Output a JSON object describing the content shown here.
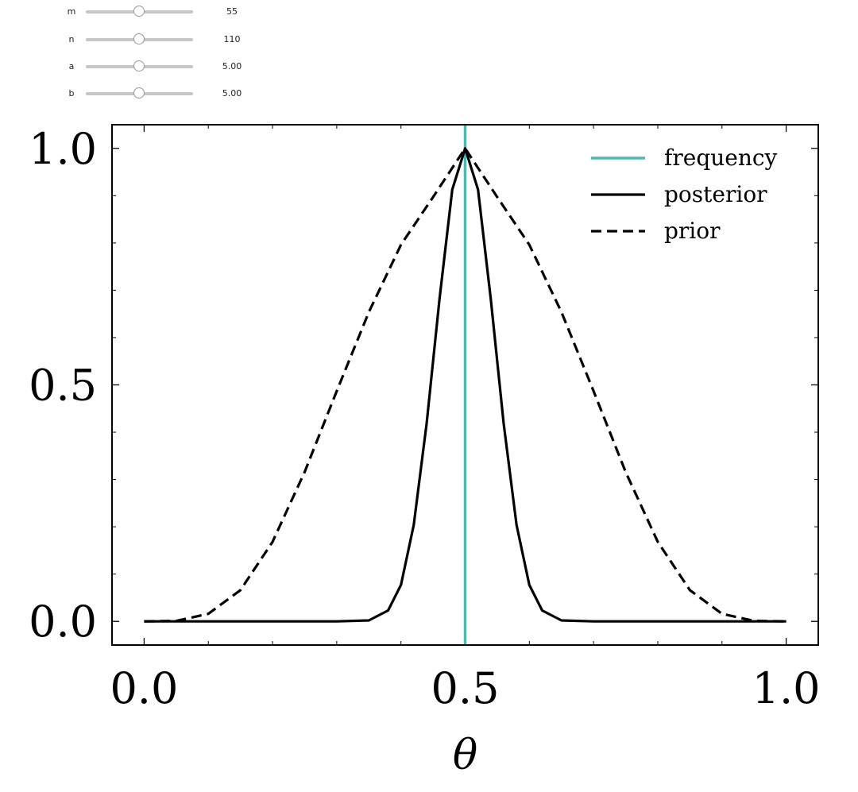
{
  "controls": {
    "sliders": [
      {
        "label": "m",
        "value_text": "55",
        "fraction": 0.5
      },
      {
        "label": "n",
        "value_text": "110",
        "fraction": 0.5
      },
      {
        "label": "a",
        "value_text": "5.00",
        "fraction": 0.5
      },
      {
        "label": "b",
        "value_text": "5.00",
        "fraction": 0.5
      }
    ]
  },
  "chart_data": {
    "type": "line",
    "title": "",
    "xlabel": "θ",
    "ylabel": "",
    "xlim": [
      -0.05,
      1.05
    ],
    "ylim": [
      -0.05,
      1.05
    ],
    "xticks": [
      0.0,
      0.5,
      1.0
    ],
    "xtick_labels": [
      "0.0",
      "0.5",
      "1.0"
    ],
    "yticks": [
      0.0,
      0.5,
      1.0
    ],
    "ytick_labels": [
      "0.0",
      "0.5",
      "1.0"
    ],
    "legend_position": "top-right",
    "legend": [
      "frequency",
      "posterior",
      "prior"
    ],
    "series": [
      {
        "name": "frequency",
        "kind": "vline",
        "x": 0.5,
        "color": "#4fb8b2",
        "style": "solid"
      },
      {
        "name": "posterior",
        "kind": "curve",
        "color": "#000000",
        "style": "solid",
        "x": [
          0.0,
          0.3,
          0.35,
          0.38,
          0.4,
          0.42,
          0.44,
          0.46,
          0.48,
          0.5,
          0.52,
          0.54,
          0.56,
          0.58,
          0.6,
          0.62,
          0.65,
          0.7,
          1.0
        ],
        "y": [
          0.0,
          0.0,
          0.002,
          0.023,
          0.077,
          0.204,
          0.418,
          0.681,
          0.913,
          1.0,
          0.913,
          0.681,
          0.418,
          0.204,
          0.077,
          0.023,
          0.002,
          0.0,
          0.0
        ]
      },
      {
        "name": "prior",
        "kind": "curve",
        "color": "#000000",
        "style": "dashed",
        "x": [
          0.0,
          0.05,
          0.1,
          0.15,
          0.2,
          0.25,
          0.3,
          0.35,
          0.4,
          0.45,
          0.5,
          0.55,
          0.6,
          0.65,
          0.7,
          0.75,
          0.8,
          0.85,
          0.9,
          0.95,
          1.0
        ],
        "y": [
          0.0,
          0.001,
          0.016,
          0.066,
          0.168,
          0.316,
          0.487,
          0.654,
          0.796,
          0.897,
          1.0,
          0.897,
          0.796,
          0.654,
          0.487,
          0.316,
          0.168,
          0.066,
          0.016,
          0.001,
          0.0
        ]
      }
    ]
  }
}
